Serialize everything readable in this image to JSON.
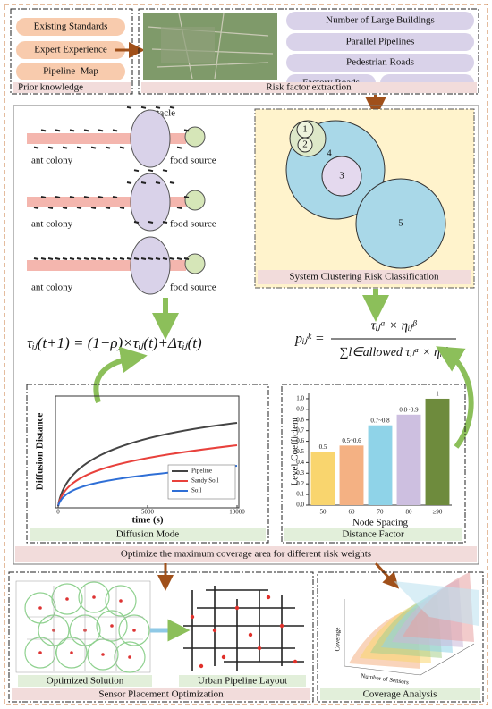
{
  "prior_knowledge": {
    "items": [
      "Existing Standards",
      "Expert Experience",
      "Pipeline  Map"
    ],
    "label": "Prior knowledge"
  },
  "risk_factor_extraction": {
    "items": [
      "Number of Large Buildings",
      "Parallel Pipelines",
      "Pedestrian Roads",
      "Factory Roads",
      "……"
    ],
    "label": "Risk factor extraction"
  },
  "ant_colony": {
    "obstacle": "obstacle",
    "panels": [
      {
        "left": "ant colony",
        "right": "food source"
      },
      {
        "left": "ant colony",
        "right": "food source"
      },
      {
        "left": "ant colony",
        "right": "food source"
      }
    ]
  },
  "clustering": {
    "clusters": [
      "1",
      "2",
      "3",
      "4",
      "5"
    ],
    "label": "System Clustering Risk Classification"
  },
  "formulas": {
    "pheromone_update": "τᵢⱼ(t+1) = (1−ρ)×τᵢⱼ(t)+Δτᵢⱼ(t)",
    "probability_lhs": "pᵢⱼᵏ =",
    "probability_numerator": "τᵢⱼᵅ × ηᵢⱼᵝ",
    "probability_denominator": "∑l∈allowed τᵢₗᵅ × ηᵢₗᵝ"
  },
  "diffusion_mode": {
    "ylabel": "Diffusion Distance",
    "xlabel": "time (s)",
    "xlim": [
      0,
      10000
    ],
    "xticks": [
      0,
      5000,
      10000
    ],
    "legend": [
      {
        "name": "Pipeline",
        "color": "#444444"
      },
      {
        "name": "Sandy Soil",
        "color": "#e8413c"
      },
      {
        "name": "Soil",
        "color": "#2f6fd6"
      }
    ],
    "label": "Diffusion Mode"
  },
  "distance_factor": {
    "type": "bar",
    "ylabel": "Level Coefficient",
    "xlabel": "Node Spacing",
    "categories": [
      "50",
      "60",
      "70",
      "80",
      "≥90"
    ],
    "values": [
      0.5,
      0.56,
      0.75,
      0.85,
      1
    ],
    "value_labels": [
      "0.5",
      "0.5~0.6",
      "0.7~0.8",
      "0.8~0.9",
      "1"
    ],
    "colors": [
      "#f9d56e",
      "#f4b183",
      "#8fd3e8",
      "#cdbfe0",
      "#6e8b3d"
    ],
    "ylim": [
      0,
      1.05
    ],
    "yticks": [
      {
        "value": 0,
        "label": "0.0"
      },
      {
        "value": 0.1,
        "label": "0.1"
      },
      {
        "value": 0.2,
        "label": "0.2"
      },
      {
        "value": 0.3,
        "label": "0.3"
      },
      {
        "value": 0.4,
        "label": "0.4"
      },
      {
        "value": 0.5,
        "label": "0.5"
      },
      {
        "value": 0.6,
        "label": "0.6"
      },
      {
        "value": 0.7,
        "label": "0.7"
      },
      {
        "value": 0.8,
        "label": "0.8"
      },
      {
        "value": 0.9,
        "label": "0.9"
      },
      {
        "value": 1,
        "label": "1.0"
      }
    ],
    "label": "Distance Factor"
  },
  "optimize": "Optimize the maximum coverage area for different risk weights",
  "sensor_placement": {
    "left": "Optimized Solution",
    "right": "Urban Pipeline Layout",
    "label": "Sensor Placement Optimization"
  },
  "coverage_analysis": {
    "ylabel": "Coverage",
    "xlabel": "Number of Sensors",
    "label": "Coverage Analysis"
  }
}
